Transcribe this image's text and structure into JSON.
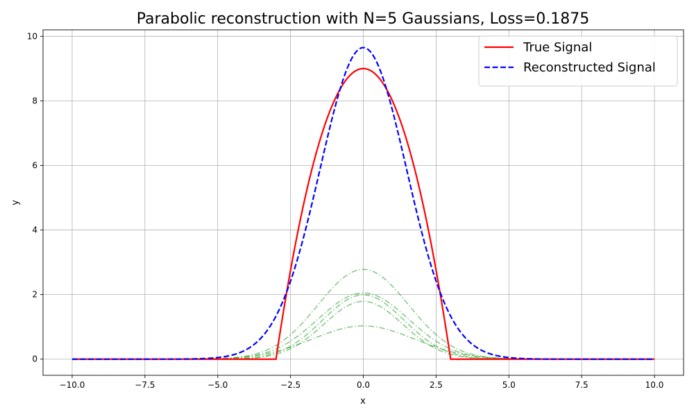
{
  "chart_data": {
    "type": "line",
    "title": "Parabolic reconstruction with N=5 Gaussians, Loss=0.1875",
    "xlabel": "x",
    "ylabel": "y",
    "xlim": [
      -11,
      11
    ],
    "ylim": [
      -0.5,
      10.2
    ],
    "grid": true,
    "legend_position": "top-right",
    "x_ticks": [
      -10.0,
      -7.5,
      -5.0,
      -2.5,
      0.0,
      2.5,
      5.0,
      7.5,
      10.0
    ],
    "x_tick_labels": [
      "−10.0",
      "−7.5",
      "−5.0",
      "−2.5",
      "0.0",
      "2.5",
      "5.0",
      "7.5",
      "10.0"
    ],
    "y_ticks": [
      0,
      2,
      4,
      6,
      8,
      10
    ],
    "y_tick_labels": [
      "0",
      "2",
      "4",
      "6",
      "8",
      "10"
    ],
    "x_domain": [
      -10,
      10
    ],
    "series": [
      {
        "name": "True Signal",
        "role": "true",
        "form": "clipped parabola",
        "expression": "max(0, 9 - x^2)",
        "peak": 9,
        "roots": [
          -3,
          3
        ],
        "color": "#ff0000",
        "style": "solid",
        "in_legend": true
      },
      {
        "name": "Reconstructed Signal",
        "role": "reconstruction",
        "form": "sum of components",
        "peak": 9.65,
        "color": "#0000ff",
        "style": "dashed",
        "in_legend": true
      }
    ],
    "components": [
      {
        "amplitude": 2.78,
        "mean": 0,
        "sigma": 1.55,
        "color": "#2ca02c",
        "style": "dashdot"
      },
      {
        "amplitude": 2.05,
        "mean": 0,
        "sigma": 1.55,
        "color": "#2ca02c",
        "style": "dashdot"
      },
      {
        "amplitude": 1.99,
        "mean": 0,
        "sigma": 1.4,
        "color": "#2ca02c",
        "style": "dashdot"
      },
      {
        "amplitude": 1.79,
        "mean": 0,
        "sigma": 1.35,
        "color": "#2ca02c",
        "style": "dashdot"
      },
      {
        "amplitude": 1.03,
        "mean": 0,
        "sigma": 1.75,
        "color": "#2ca02c",
        "style": "dashdot"
      }
    ]
  }
}
